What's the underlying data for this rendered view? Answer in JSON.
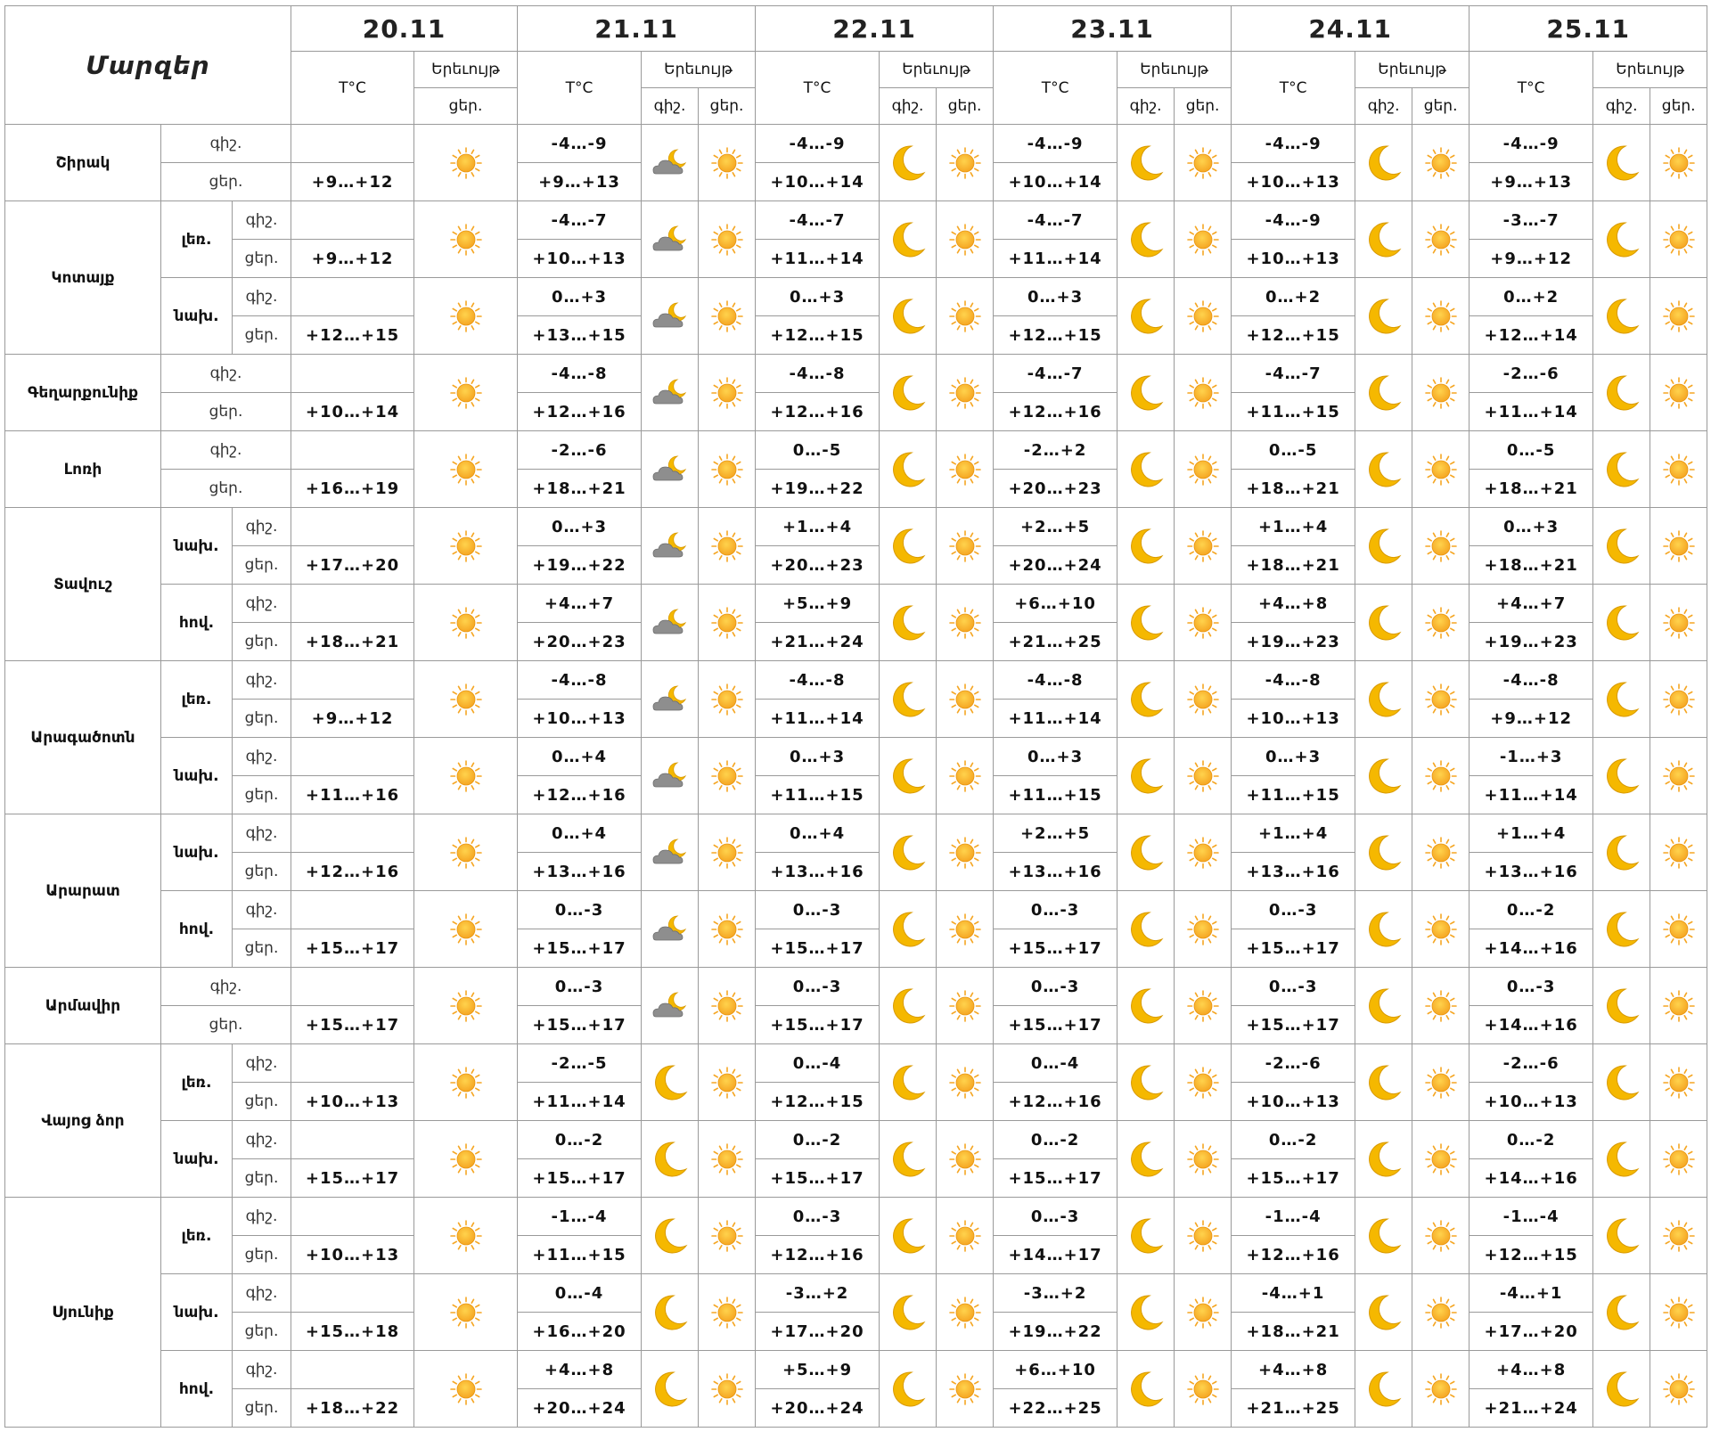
{
  "header": {
    "title": "Մարզեր",
    "temp_label": "T°C",
    "sky_label": "Երեւույթ",
    "night_label": "գիշ.",
    "day_label": "ցեր.",
    "dates": [
      "20.11",
      "21.11",
      "22.11",
      "23.11",
      "24.11",
      "25.11"
    ]
  },
  "icons": {
    "sun": "sun-icon",
    "moon": "moon-icon",
    "cloud_moon": "cloud-moon-icon",
    "sun_color": "#F5A623",
    "moon_color": "#F5B800",
    "cloud_color": "#8E8E8E"
  },
  "regions": [
    {
      "name": "Շիրակ",
      "zones": [
        {
          "name": "",
          "night": [
            "",
            "-4…-9",
            "-4…-9",
            "-4…-9",
            "-4…-9",
            "-4…-9"
          ],
          "day": [
            "+9…+12",
            "+9…+13",
            "+10…+14",
            "+10…+14",
            "+10…+13",
            "+9…+13"
          ]
        }
      ]
    },
    {
      "name": "Կոտայք",
      "zones": [
        {
          "name": "լեռ.",
          "night": [
            "",
            "-4…-7",
            "-4…-7",
            "-4…-7",
            "-4…-9",
            "-3…-7"
          ],
          "day": [
            "+9…+12",
            "+10…+13",
            "+11…+14",
            "+11…+14",
            "+10…+13",
            "+9…+12"
          ]
        },
        {
          "name": "նախ.",
          "night": [
            "",
            "0…+3",
            "0…+3",
            "0…+3",
            "0…+2",
            "0…+2"
          ],
          "day": [
            "+12…+15",
            "+13…+15",
            "+12…+15",
            "+12…+15",
            "+12…+15",
            "+12…+14"
          ]
        }
      ]
    },
    {
      "name": "Գեղարքունիք",
      "zones": [
        {
          "name": "",
          "night": [
            "",
            "-4…-8",
            "-4…-8",
            "-4…-7",
            "-4…-7",
            "-2…-6"
          ],
          "day": [
            "+10…+14",
            "+12…+16",
            "+12…+16",
            "+12…+16",
            "+11…+15",
            "+11…+14"
          ]
        }
      ]
    },
    {
      "name": "Լոռի",
      "zones": [
        {
          "name": "",
          "night": [
            "",
            "-2…-6",
            "0…-5",
            "-2…+2",
            "0…-5",
            "0…-5"
          ],
          "day": [
            "+16…+19",
            "+18…+21",
            "+19…+22",
            "+20…+23",
            "+18…+21",
            "+18…+21"
          ]
        }
      ]
    },
    {
      "name": "Տավուշ",
      "zones": [
        {
          "name": "նախ.",
          "night": [
            "",
            "0…+3",
            "+1…+4",
            "+2…+5",
            "+1…+4",
            "0…+3"
          ],
          "day": [
            "+17…+20",
            "+19…+22",
            "+20…+23",
            "+20…+24",
            "+18…+21",
            "+18…+21"
          ]
        },
        {
          "name": "հով.",
          "night": [
            "",
            "+4…+7",
            "+5…+9",
            "+6…+10",
            "+4…+8",
            "+4…+7"
          ],
          "day": [
            "+18…+21",
            "+20…+23",
            "+21…+24",
            "+21…+25",
            "+19…+23",
            "+19…+23"
          ]
        }
      ]
    },
    {
      "name": "Արագածոտն",
      "zones": [
        {
          "name": "լեռ.",
          "night": [
            "",
            "-4…-8",
            "-4…-8",
            "-4…-8",
            "-4…-8",
            "-4…-8"
          ],
          "day": [
            "+9…+12",
            "+10…+13",
            "+11…+14",
            "+11…+14",
            "+10…+13",
            "+9…+12"
          ]
        },
        {
          "name": "նախ.",
          "night": [
            "",
            "0…+4",
            "0…+3",
            "0…+3",
            "0…+3",
            "-1…+3"
          ],
          "day": [
            "+11…+16",
            "+12…+16",
            "+11…+15",
            "+11…+15",
            "+11…+15",
            "+11…+14"
          ]
        }
      ]
    },
    {
      "name": "Արարատ",
      "zones": [
        {
          "name": "նախ.",
          "night": [
            "",
            "0…+4",
            "0…+4",
            "+2…+5",
            "+1…+4",
            "+1…+4"
          ],
          "day": [
            "+12…+16",
            "+13…+16",
            "+13…+16",
            "+13…+16",
            "+13…+16",
            "+13…+16"
          ]
        },
        {
          "name": "հով.",
          "night": [
            "",
            "0…-3",
            "0…-3",
            "0…-3",
            "0…-3",
            "0…-2"
          ],
          "day": [
            "+15…+17",
            "+15…+17",
            "+15…+17",
            "+15…+17",
            "+15…+17",
            "+14…+16"
          ]
        }
      ]
    },
    {
      "name": "Արմավիր",
      "zones": [
        {
          "name": "",
          "night": [
            "",
            "0…-3",
            "0…-3",
            "0…-3",
            "0…-3",
            "0…-3"
          ],
          "day": [
            "+15…+17",
            "+15…+17",
            "+15…+17",
            "+15…+17",
            "+15…+17",
            "+14…+16"
          ]
        }
      ]
    },
    {
      "name": "Վայոց ձոր",
      "zones": [
        {
          "name": "լեռ.",
          "night": [
            "",
            "-2…-5",
            "0…-4",
            "0…-4",
            "-2…-6",
            "-2…-6"
          ],
          "day": [
            "+10…+13",
            "+11…+14",
            "+12…+15",
            "+12…+16",
            "+10…+13",
            "+10…+13"
          ]
        },
        {
          "name": "նախ.",
          "night": [
            "",
            "0…-2",
            "0…-2",
            "0…-2",
            "0…-2",
            "0…-2"
          ],
          "day": [
            "+15…+17",
            "+15…+17",
            "+15…+17",
            "+15…+17",
            "+15…+17",
            "+14…+16"
          ]
        }
      ]
    },
    {
      "name": "Սյունիք",
      "zones": [
        {
          "name": "լեռ.",
          "night": [
            "",
            "-1…-4",
            "0…-3",
            "0…-3",
            "-1…-4",
            "-1…-4"
          ],
          "day": [
            "+10…+13",
            "+11…+15",
            "+12…+16",
            "+14…+17",
            "+12…+16",
            "+12…+15"
          ]
        },
        {
          "name": "նախ.",
          "night": [
            "",
            "0…-4",
            "-3…+2",
            "-3…+2",
            "-4…+1",
            "-4…+1"
          ],
          "day": [
            "+15…+18",
            "+16…+20",
            "+17…+20",
            "+19…+22",
            "+18…+21",
            "+17…+20"
          ]
        },
        {
          "name": "հով.",
          "night": [
            "",
            "+4…+8",
            "+5…+9",
            "+6…+10",
            "+4…+8",
            "+4…+8"
          ],
          "day": [
            "+18…+22",
            "+20…+24",
            "+20…+24",
            "+22…+25",
            "+21…+25",
            "+21…+24"
          ]
        }
      ]
    }
  ],
  "day21_night_icon_by_region": [
    "cloud-moon-icon",
    "cloud-moon-icon",
    "cloud-moon-icon",
    "cloud-moon-icon",
    "cloud-moon-icon",
    "cloud-moon-icon",
    "cloud-moon-icon",
    "cloud-moon-icon",
    "moon-icon",
    "moon-icon"
  ]
}
